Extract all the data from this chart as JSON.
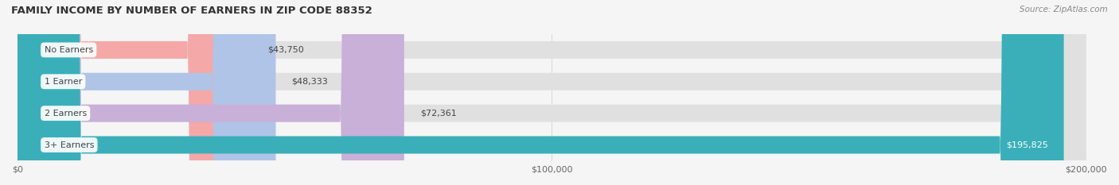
{
  "title": "FAMILY INCOME BY NUMBER OF EARNERS IN ZIP CODE 88352",
  "source": "Source: ZipAtlas.com",
  "categories": [
    "No Earners",
    "1 Earner",
    "2 Earners",
    "3+ Earners"
  ],
  "values": [
    43750,
    48333,
    72361,
    195825
  ],
  "bar_colors": [
    "#f4a8a8",
    "#b0c4e8",
    "#c8b0d8",
    "#3aafb9"
  ],
  "label_colors": [
    "#333333",
    "#333333",
    "#333333",
    "#ffffff"
  ],
  "value_labels": [
    "$43,750",
    "$48,333",
    "$72,361",
    "$195,825"
  ],
  "xlim": [
    0,
    200000
  ],
  "xticks": [
    0,
    100000,
    200000
  ],
  "xtick_labels": [
    "$0",
    "$100,000",
    "$200,000"
  ],
  "background_color": "#f0f0f0",
  "bar_bg_color": "#e8e8e8",
  "bar_height": 0.55,
  "figsize": [
    14.06,
    2.33
  ],
  "dpi": 100
}
